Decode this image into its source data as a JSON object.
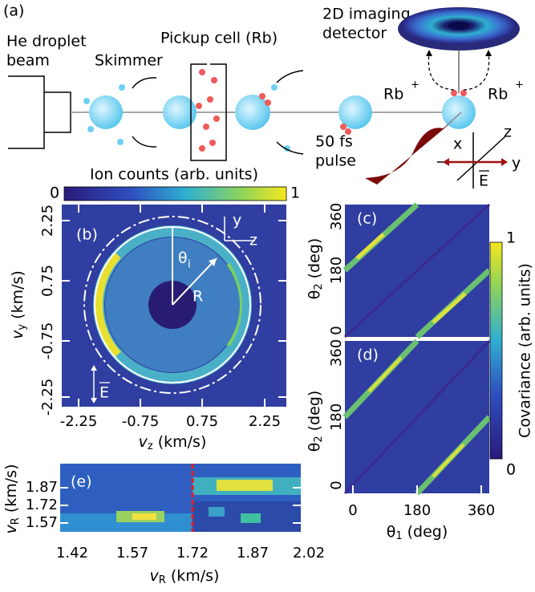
{
  "panel_a": {
    "label": "(a)",
    "beam_source": [
      "He droplet",
      "beam"
    ],
    "skimmer": "Skimmer",
    "pickup_cell": "Pickup cell (Rb)",
    "detector": [
      "2D imaging",
      "detector"
    ],
    "ion_left": "Rb",
    "ion_right": "Rb",
    "charge": "+",
    "pulse": [
      "50 fs",
      "pulse"
    ],
    "axes": {
      "x": "x",
      "y": "y",
      "z": "z",
      "field": "E"
    }
  },
  "colorbar_top": {
    "title": "Ion counts (arb. units)",
    "min": "0",
    "max": "1"
  },
  "panel_b": {
    "label": "(b)",
    "yticks": [
      "2.25",
      "0.75",
      "-0.75",
      "-2.25"
    ],
    "xticks": [
      "-2.25",
      "-0.75",
      "0.75",
      "2.25"
    ],
    "xlabel": {
      "symbol": "v",
      "sub": "z",
      "unit": " (km/s)"
    },
    "ylabel": {
      "symbol": "v",
      "sub": "y",
      "unit": " (km/s)"
    },
    "inset_axes": {
      "y": "y",
      "z": "z"
    },
    "angle": {
      "symbol": "θ",
      "sub": "i"
    },
    "radius": "R",
    "field": "E"
  },
  "panel_c": {
    "label": "(c)",
    "yticks": [
      "360",
      "180",
      "0"
    ]
  },
  "panel_d": {
    "label": "(d)",
    "yticks": [
      "360",
      "180",
      "0"
    ]
  },
  "panels_cd": {
    "ylabel": {
      "symbol": "θ",
      "sub": "2",
      "unit": " (deg)"
    },
    "xticks": [
      "0",
      "180",
      "360"
    ],
    "xlabel": {
      "symbol": "θ",
      "sub": "1",
      "unit": " (deg)"
    }
  },
  "colorbar_right": {
    "title": "Covariance (arb. units)",
    "min": "0",
    "max": "1"
  },
  "panel_e": {
    "label": "(e)",
    "yticks": [
      "1.87",
      "1.72",
      "1.57"
    ],
    "xticks": [
      "1.42",
      "1.57",
      "1.72",
      "1.87",
      "2.02"
    ],
    "xlabel": {
      "symbol": "v",
      "sub": "R",
      "unit": " (km/s)"
    },
    "ylabel": {
      "symbol": "v",
      "sub": "R",
      "unit": " (km/s)"
    }
  }
}
